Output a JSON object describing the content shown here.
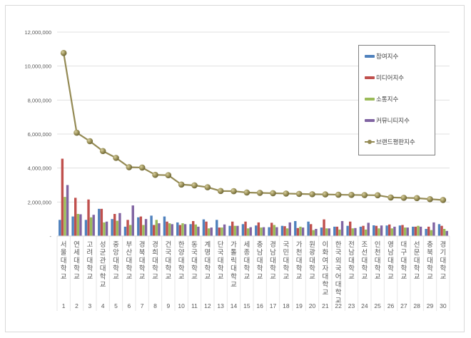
{
  "chart_data": {
    "type": "bar+line",
    "title": "",
    "xlabel": "",
    "ylabel": "",
    "ylim": [
      0,
      12000000
    ],
    "yticks": [
      "-",
      "2,000,000",
      "4,000,000",
      "6,000,000",
      "8,000,000",
      "10,000,000",
      "12,000,000"
    ],
    "grid": true,
    "legend_position": "right",
    "categories": [
      "서울대학교",
      "연세대학교",
      "고려대학교",
      "성균관대학교",
      "중앙대학교",
      "부산대학교",
      "경북대학교",
      "경희대학교",
      "건국대학교",
      "한양대학교",
      "동국대학교",
      "계명대학교",
      "단국대학교",
      "가톨릭대학교",
      "세종대학교",
      "충남대학교",
      "경남대학교",
      "국민대학교",
      "가천대학교",
      "원광대학교",
      "이화여자대학교",
      "한국외국어대학교",
      "전남대학교",
      "조선대학교",
      "인천대학교",
      "영남대학교",
      "대구대학교",
      "선문대학교",
      "충북대학교",
      "경기대학교"
    ],
    "ranks": [
      "1",
      "2",
      "3",
      "4",
      "5",
      "6",
      "7",
      "8",
      "9",
      "10",
      "11",
      "12",
      "13",
      "14",
      "15",
      "16",
      "17",
      "18",
      "19",
      "20",
      "21",
      "22",
      "23",
      "24",
      "25",
      "26",
      "27",
      "28",
      "29",
      "30"
    ],
    "series": [
      {
        "name": "참여지수",
        "type": "bar",
        "color": "#4f81bd",
        "values": [
          950000,
          1150000,
          950000,
          1600000,
          1000000,
          550000,
          1100000,
          1200000,
          1150000,
          800000,
          700000,
          980000,
          950000,
          600000,
          700000,
          620000,
          520000,
          600000,
          880000,
          850000,
          500000,
          550000,
          600000,
          550000,
          630000,
          620000,
          620000,
          550000,
          420000,
          700000
        ]
      },
      {
        "name": "미디어지수",
        "type": "bar",
        "color": "#c0504d",
        "values": [
          4550000,
          2250000,
          2150000,
          1600000,
          1300000,
          950000,
          1150000,
          650000,
          850000,
          650000,
          880000,
          850000,
          500000,
          850000,
          850000,
          800000,
          780000,
          580000,
          470000,
          700000,
          980000,
          550000,
          850000,
          600000,
          600000,
          680000,
          650000,
          550000,
          550000,
          600000
        ]
      },
      {
        "name": "소통지수",
        "type": "bar",
        "color": "#9bbb59",
        "values": [
          2300000,
          1300000,
          1100000,
          800000,
          900000,
          650000,
          650000,
          950000,
          750000,
          750000,
          680000,
          450000,
          500000,
          600000,
          450000,
          500000,
          650000,
          450000,
          550000,
          350000,
          450000,
          380000,
          450000,
          380000,
          450000,
          450000,
          500000,
          600000,
          350000,
          420000
        ]
      },
      {
        "name": "커뮤니티지수",
        "type": "bar",
        "color": "#8064a2",
        "values": [
          3000000,
          1280000,
          1250000,
          850000,
          1350000,
          1800000,
          1000000,
          750000,
          700000,
          700000,
          550000,
          500000,
          680000,
          600000,
          520000,
          520000,
          520000,
          800000,
          500000,
          420000,
          450000,
          880000,
          470000,
          780000,
          620000,
          550000,
          500000,
          550000,
          800000,
          300000
        ]
      },
      {
        "name": "브랜드평판지수",
        "type": "line",
        "color": "#948a54",
        "values": [
          10770000,
          6080000,
          5580000,
          5000000,
          4600000,
          4050000,
          4030000,
          3600000,
          3580000,
          3030000,
          2980000,
          2870000,
          2650000,
          2640000,
          2560000,
          2540000,
          2520000,
          2500000,
          2480000,
          2460000,
          2450000,
          2430000,
          2420000,
          2410000,
          2400000,
          2270000,
          2250000,
          2230000,
          2170000,
          2120000
        ]
      }
    ]
  },
  "legend": {
    "items": [
      {
        "label": "참여지수",
        "color": "#4f81bd",
        "kind": "bar"
      },
      {
        "label": "미디어지수",
        "color": "#c0504d",
        "kind": "bar"
      },
      {
        "label": "소통지수",
        "color": "#9bbb59",
        "kind": "bar"
      },
      {
        "label": "커뮤니티지수",
        "color": "#8064a2",
        "kind": "bar"
      },
      {
        "label": "브랜드평판지수",
        "color": "#948a54",
        "kind": "line"
      }
    ]
  }
}
